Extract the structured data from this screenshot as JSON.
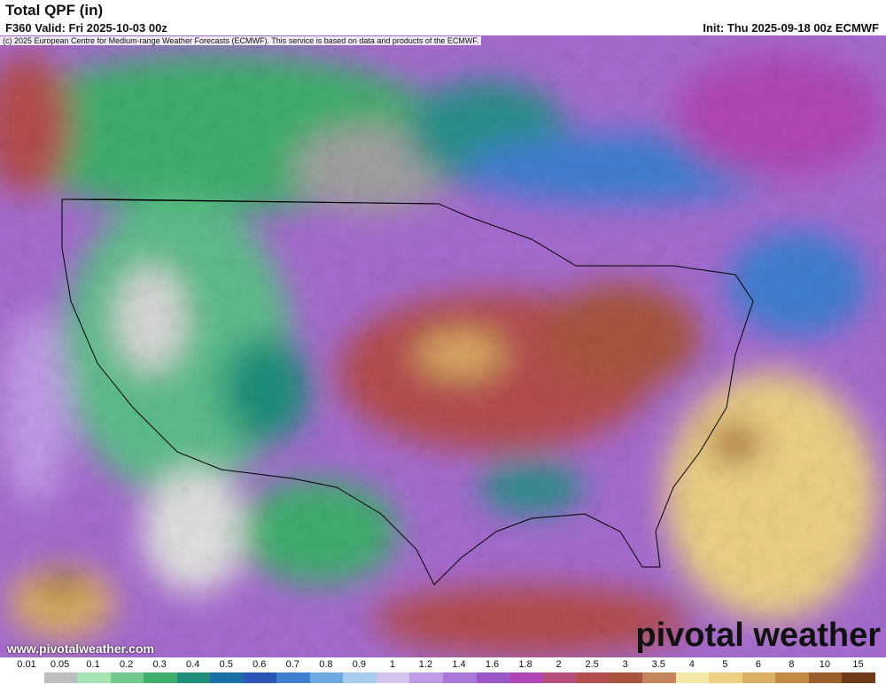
{
  "header": {
    "title": "Total QPF (in)",
    "valid": "F360 Valid: Fri 2025-10-03 00z",
    "init": "Init: Thu 2025-09-18 00z ECMWF",
    "credit": "(c) 2025 European Centre for Medium-range Weather Forecasts (ECMWF). This service is based on data and products of the ECMWF."
  },
  "map": {
    "website": "www.pivotalweather.com",
    "logo": "pivotal weather"
  },
  "colorbar": {
    "items": [
      {
        "label": "0.01",
        "color": "#ffffff"
      },
      {
        "label": "0.05",
        "color": "#bdbdbd"
      },
      {
        "label": "0.1",
        "color": "#a6e3b4"
      },
      {
        "label": "0.2",
        "color": "#72c98e"
      },
      {
        "label": "0.3",
        "color": "#3fae6e"
      },
      {
        "label": "0.4",
        "color": "#1f8f79"
      },
      {
        "label": "0.5",
        "color": "#1d6fa8"
      },
      {
        "label": "0.6",
        "color": "#2c56b8"
      },
      {
        "label": "0.7",
        "color": "#3f7fd0"
      },
      {
        "label": "0.8",
        "color": "#6fa8e0"
      },
      {
        "label": "0.9",
        "color": "#a7ccee"
      },
      {
        "label": "1",
        "color": "#d2c3ef"
      },
      {
        "label": "1.2",
        "color": "#c09be6"
      },
      {
        "label": "1.4",
        "color": "#a977d8"
      },
      {
        "label": "1.6",
        "color": "#9b57c8"
      },
      {
        "label": "1.8",
        "color": "#b147b6"
      },
      {
        "label": "2",
        "color": "#b64f7e"
      },
      {
        "label": "2.5",
        "color": "#b44d50"
      },
      {
        "label": "3",
        "color": "#a9553d"
      },
      {
        "label": "3.5",
        "color": "#c4845e"
      },
      {
        "label": "4",
        "color": "#f4e8a8"
      },
      {
        "label": "5",
        "color": "#edd083"
      },
      {
        "label": "6",
        "color": "#dcb064"
      },
      {
        "label": "8",
        "color": "#c48a45"
      },
      {
        "label": "10",
        "color": "#9c5f2c"
      },
      {
        "label": "15",
        "color": "#6e3a17"
      }
    ]
  }
}
